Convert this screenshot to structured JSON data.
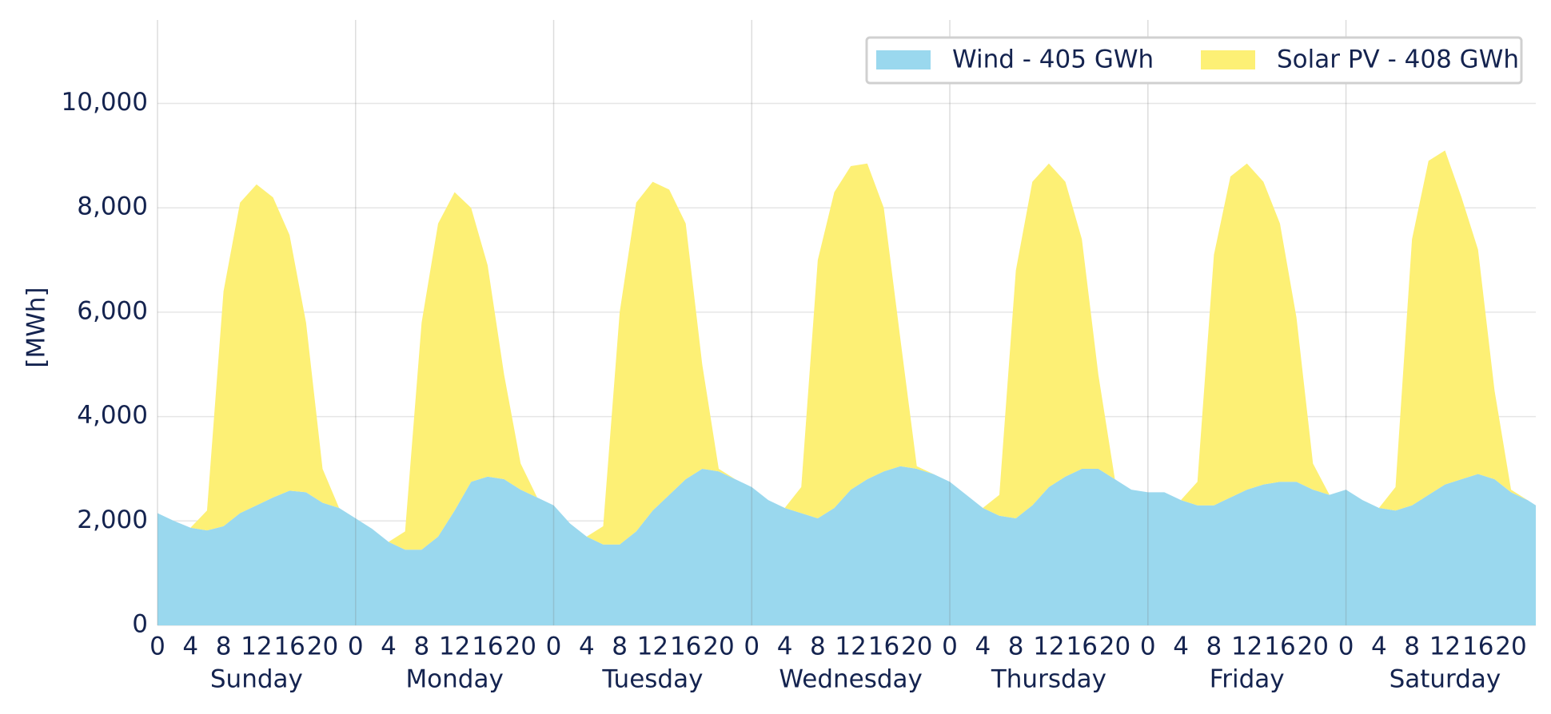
{
  "chart_data": {
    "type": "stacked_area",
    "y_label": "[MWh]",
    "x": [
      0,
      2,
      4,
      6,
      8,
      10,
      12,
      14,
      16,
      18,
      20,
      22,
      24,
      26,
      28,
      30,
      32,
      34,
      36,
      38,
      40,
      42,
      44,
      46,
      48,
      50,
      52,
      54,
      56,
      58,
      60,
      62,
      64,
      66,
      68,
      70,
      72,
      74,
      76,
      78,
      80,
      82,
      84,
      86,
      88,
      90,
      92,
      94,
      96,
      98,
      100,
      102,
      104,
      106,
      108,
      110,
      112,
      114,
      116,
      118,
      120,
      122,
      124,
      126,
      128,
      130,
      132,
      134,
      136,
      138,
      140,
      142,
      144,
      146,
      148,
      150,
      152,
      154,
      156,
      158,
      160,
      162,
      164,
      166,
      167
    ],
    "series": [
      {
        "name": "Wind - 405 GWh",
        "color": "#9ad8ee",
        "values": [
          2150,
          2000,
          1870,
          1820,
          1900,
          2150,
          2300,
          2450,
          2580,
          2550,
          2350,
          2250,
          2050,
          1850,
          1600,
          1450,
          1450,
          1700,
          2200,
          2750,
          2850,
          2800,
          2600,
          2450,
          2300,
          1950,
          1700,
          1550,
          1550,
          1800,
          2200,
          2500,
          2800,
          3000,
          2950,
          2800,
          2650,
          2400,
          2250,
          2150,
          2050,
          2250,
          2600,
          2800,
          2950,
          3050,
          3000,
          2900,
          2750,
          2500,
          2250,
          2100,
          2050,
          2300,
          2650,
          2850,
          3000,
          3000,
          2800,
          2600,
          2550,
          2550,
          2400,
          2300,
          2300,
          2450,
          2600,
          2700,
          2750,
          2750,
          2600,
          2500,
          2600,
          2400,
          2250,
          2200,
          2300,
          2500,
          2700,
          2800,
          2900,
          2800,
          2550,
          2400,
          2300
        ]
      },
      {
        "name": "Solar PV - 408 GWh",
        "color": "#fdf075",
        "values": [
          0,
          0,
          0,
          380,
          4500,
          5950,
          6150,
          5750,
          4900,
          3250,
          650,
          0,
          0,
          0,
          0,
          350,
          4350,
          6000,
          6100,
          5250,
          4050,
          2000,
          500,
          0,
          0,
          0,
          0,
          350,
          4450,
          6300,
          6300,
          5850,
          4900,
          2000,
          50,
          0,
          0,
          0,
          0,
          500,
          4950,
          6050,
          6200,
          6050,
          5050,
          2450,
          50,
          0,
          0,
          0,
          0,
          400,
          4750,
          6200,
          6200,
          5650,
          4400,
          1800,
          0,
          0,
          0,
          0,
          0,
          450,
          4800,
          6150,
          6250,
          5800,
          4950,
          3150,
          500,
          0,
          0,
          0,
          0,
          450,
          5100,
          6400,
          6400,
          5400,
          4300,
          1700,
          50,
          0,
          0
        ]
      }
    ],
    "days": [
      "Sunday",
      "Monday",
      "Tuesday",
      "Wednesday",
      "Thursday",
      "Friday",
      "Saturday"
    ],
    "xlim": [
      0,
      167
    ],
    "xticks": [
      {
        "value": 0,
        "label": "0"
      },
      {
        "value": 4,
        "label": "4"
      },
      {
        "value": 8,
        "label": "8"
      },
      {
        "value": 12,
        "label": "12"
      },
      {
        "value": 16,
        "label": "16"
      },
      {
        "value": 20,
        "label": "20"
      },
      {
        "value": 24,
        "label": "0"
      },
      {
        "value": 28,
        "label": "4"
      },
      {
        "value": 32,
        "label": "8"
      },
      {
        "value": 36,
        "label": "12"
      },
      {
        "value": 40,
        "label": "16"
      },
      {
        "value": 44,
        "label": "20"
      },
      {
        "value": 48,
        "label": "0"
      },
      {
        "value": 52,
        "label": "4"
      },
      {
        "value": 56,
        "label": "8"
      },
      {
        "value": 60,
        "label": "12"
      },
      {
        "value": 64,
        "label": "16"
      },
      {
        "value": 68,
        "label": "20"
      },
      {
        "value": 72,
        "label": "0"
      },
      {
        "value": 76,
        "label": "4"
      },
      {
        "value": 80,
        "label": "8"
      },
      {
        "value": 84,
        "label": "12"
      },
      {
        "value": 88,
        "label": "16"
      },
      {
        "value": 92,
        "label": "20"
      },
      {
        "value": 96,
        "label": "0"
      },
      {
        "value": 100,
        "label": "4"
      },
      {
        "value": 104,
        "label": "8"
      },
      {
        "value": 108,
        "label": "12"
      },
      {
        "value": 112,
        "label": "16"
      },
      {
        "value": 116,
        "label": "20"
      },
      {
        "value": 120,
        "label": "0"
      },
      {
        "value": 124,
        "label": "4"
      },
      {
        "value": 128,
        "label": "8"
      },
      {
        "value": 132,
        "label": "12"
      },
      {
        "value": 136,
        "label": "16"
      },
      {
        "value": 140,
        "label": "20"
      },
      {
        "value": 144,
        "label": "0"
      },
      {
        "value": 148,
        "label": "4"
      },
      {
        "value": 152,
        "label": "8"
      },
      {
        "value": 156,
        "label": "12"
      },
      {
        "value": 160,
        "label": "16"
      },
      {
        "value": 164,
        "label": "20"
      }
    ],
    "ylim": [
      0,
      11600
    ],
    "yticks": [
      0,
      {
        "value": 2000,
        "label": "2,000"
      },
      {
        "value": 4000,
        "label": "4,000"
      },
      {
        "value": 6000,
        "label": "6,000"
      },
      {
        "value": 8000,
        "label": "8,000"
      },
      {
        "value": 10000,
        "label": "10,000"
      }
    ],
    "grid": true,
    "legend": "top-right"
  }
}
